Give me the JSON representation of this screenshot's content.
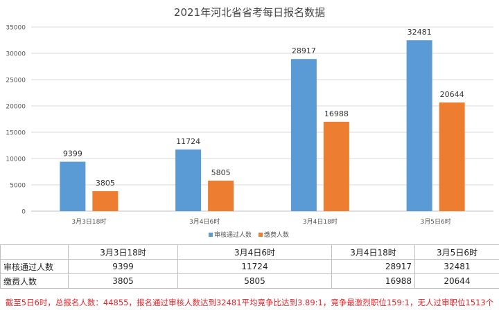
{
  "chart_data": {
    "type": "bar",
    "title": "2021年河北省省考每日报名数据",
    "categories": [
      "3月3日18时",
      "3月4日6时",
      "3月4日18时",
      "3月5日6时"
    ],
    "series": [
      {
        "name": "审核通过人数",
        "color": "#5b9bd5",
        "values": [
          9399,
          11724,
          28917,
          32481
        ]
      },
      {
        "name": "缴费人数",
        "color": "#ed7d31",
        "values": [
          3805,
          5805,
          16988,
          20644
        ]
      }
    ],
    "ylim": [
      0,
      35000
    ],
    "yticks": [
      0,
      5000,
      10000,
      15000,
      20000,
      25000,
      30000,
      35000
    ],
    "grid": true,
    "legend": "bottom",
    "data_labels": true
  },
  "table": {
    "header": [
      "",
      "3月3日18时",
      "3月4日6时",
      "3月4日18时",
      "3月5日6时"
    ],
    "rows": [
      {
        "label": "审核通过人数",
        "cells": [
          "9399",
          "11724",
          "28917",
          "32481"
        ]
      },
      {
        "label": "缴费人数",
        "cells": [
          "3805",
          "5805",
          "16988",
          "20644"
        ]
      }
    ]
  },
  "note": "截至5日6时，总报名人数：44855，报名通过审核人数达到32481平均竞争比达到3.89:1，竞争最激烈职位159:1，无人过审职位1513个"
}
